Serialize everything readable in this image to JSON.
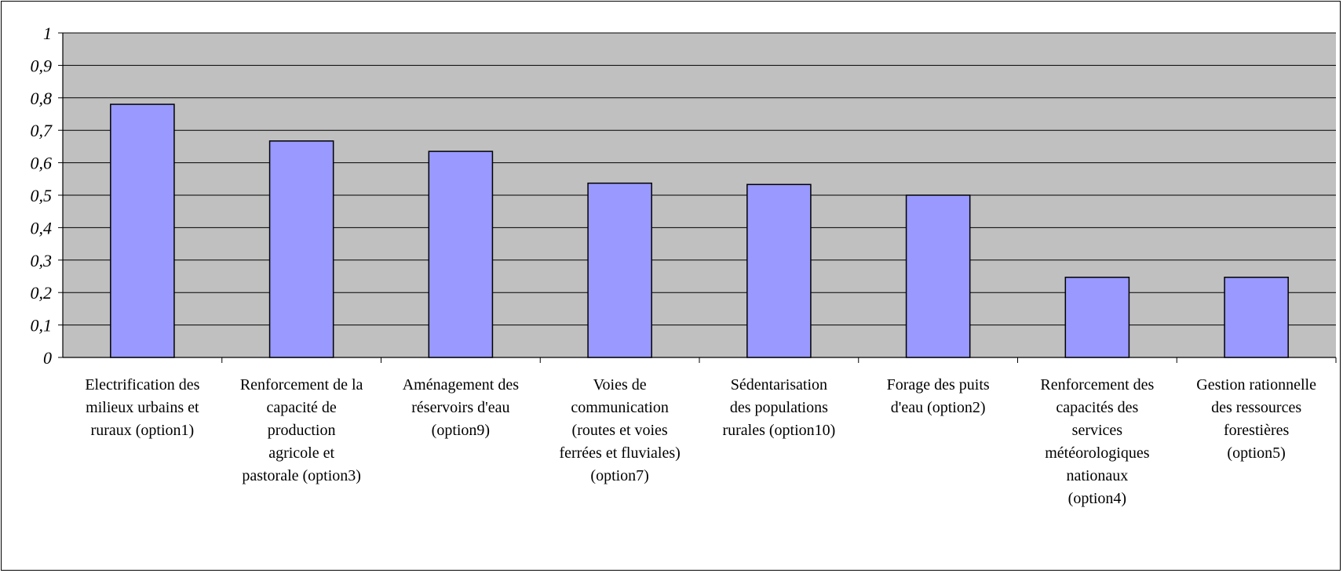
{
  "chart_data": {
    "type": "bar",
    "title": "",
    "xlabel": "",
    "ylabel": "",
    "ylim": [
      0,
      1
    ],
    "yticks": [
      "0",
      "0,1",
      "0,2",
      "0,3",
      "0,4",
      "0,5",
      "0,6",
      "0,7",
      "0,8",
      "0,9",
      "1"
    ],
    "grid": true,
    "legend": "none",
    "colors": {
      "plot_background": "#c0c0c0",
      "bar_fill": "#9999ff",
      "bar_stroke": "#000000",
      "gridline": "#000000"
    },
    "categories": [
      [
        "Electrification des",
        "milieux urbains et",
        "ruraux (option1)"
      ],
      [
        "Renforcement de la",
        "capacité de",
        "production",
        "agricole et",
        "pastorale (option3)"
      ],
      [
        "Aménagement des",
        "réservoirs d'eau",
        "(option9)"
      ],
      [
        "Voies de",
        "communication",
        "(routes et voies",
        "ferrées et fluviales)",
        "(option7)"
      ],
      [
        "Sédentarisation",
        "des populations",
        "rurales (option10)"
      ],
      [
        "Forage des puits",
        "d'eau (option2)"
      ],
      [
        "Renforcement des",
        "capacités des",
        "services",
        "météorologiques",
        "nationaux",
        "(option4)"
      ],
      [
        "Gestion rationnelle",
        "des ressources",
        "forestières",
        "(option5)"
      ]
    ],
    "values": [
      0.78,
      0.667,
      0.635,
      0.537,
      0.533,
      0.5,
      0.247,
      0.247
    ]
  }
}
